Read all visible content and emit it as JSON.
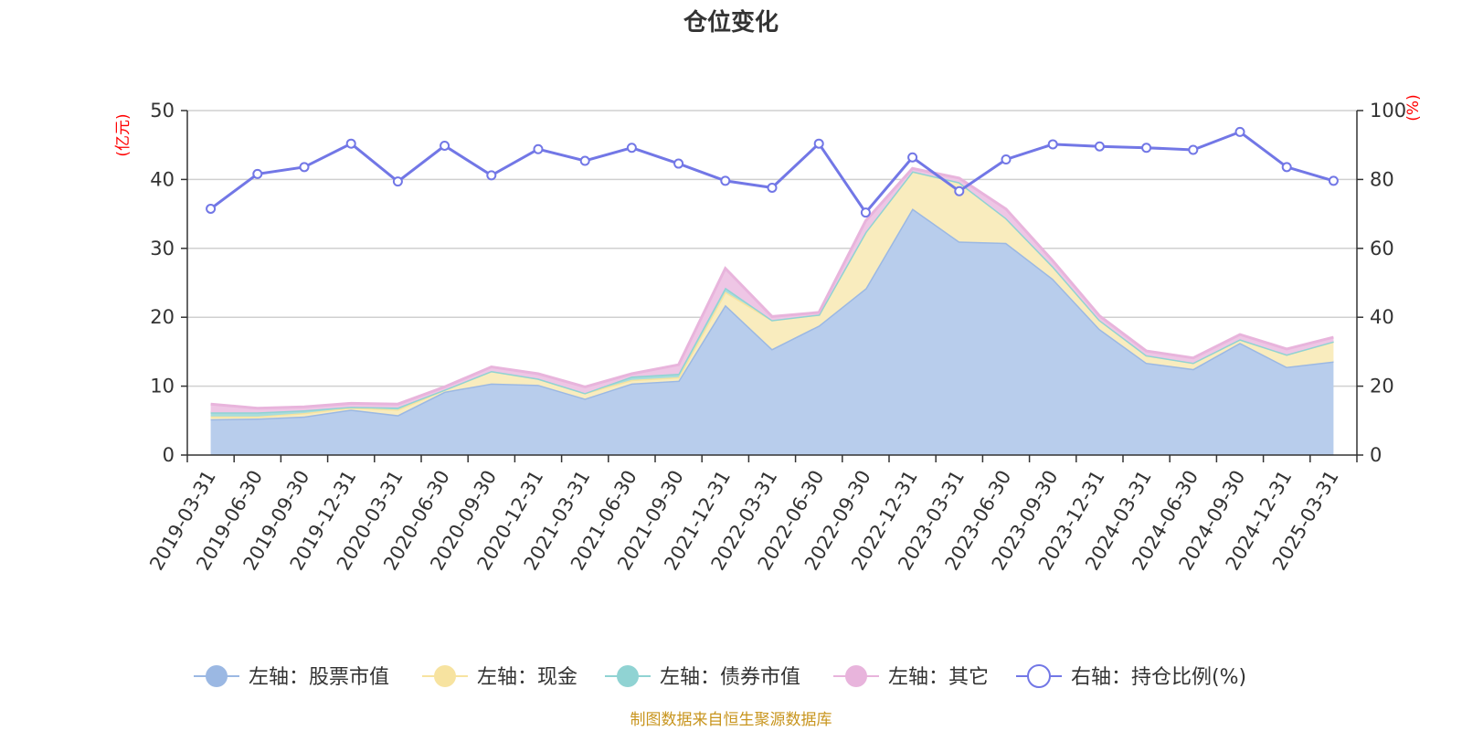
{
  "chart_data": {
    "type": "area",
    "title": "仓位变化",
    "x": [
      "2019-03-31",
      "2019-06-30",
      "2019-09-30",
      "2019-12-31",
      "2020-03-31",
      "2020-06-30",
      "2020-09-30",
      "2020-12-31",
      "2021-03-31",
      "2021-06-30",
      "2021-09-30",
      "2021-12-31",
      "2022-03-31",
      "2022-06-30",
      "2022-09-30",
      "2022-12-31",
      "2023-03-31",
      "2023-06-30",
      "2023-09-30",
      "2023-12-31",
      "2024-03-31",
      "2024-06-30",
      "2024-09-30",
      "2024-12-31",
      "2025-03-31"
    ],
    "left_axis": {
      "unit": "(亿元)",
      "ylim": [
        0,
        50
      ],
      "ticks": [
        0,
        10,
        20,
        30,
        40,
        50
      ]
    },
    "right_axis": {
      "unit": "(%)",
      "ylim": [
        0,
        100
      ],
      "ticks": [
        0,
        20,
        40,
        60,
        80,
        100
      ]
    },
    "stacked": true,
    "series": [
      {
        "name": "左轴：股票市值",
        "axis": "left",
        "color": "#9bb8e3",
        "fill": "#b8cdec",
        "values": [
          5.2,
          5.3,
          5.6,
          6.6,
          5.8,
          9.2,
          10.4,
          10.2,
          8.2,
          10.4,
          10.8,
          21.8,
          15.4,
          18.8,
          24.2,
          35.8,
          31.0,
          30.8,
          25.6,
          18.3,
          13.4,
          12.5,
          16.3,
          12.8,
          13.6
        ]
      },
      {
        "name": "左轴：现金",
        "axis": "left",
        "color": "#f7e3a0",
        "fill": "#f9ecbe",
        "values": [
          0.4,
          0.3,
          0.5,
          0.3,
          0.8,
          0.3,
          1.8,
          0.9,
          0.8,
          0.5,
          0.5,
          1.9,
          4.2,
          1.6,
          8.2,
          5.4,
          8.6,
          3.6,
          1.8,
          1.3,
          1.1,
          0.9,
          0.5,
          1.8,
          2.9
        ]
      },
      {
        "name": "左轴：债券市值",
        "axis": "left",
        "color": "#90d3d3",
        "fill": "#a8dcdc",
        "values": [
          0.6,
          0.6,
          0.4,
          0.1,
          0.3,
          0.0,
          0.0,
          0.0,
          0.0,
          0.5,
          0.5,
          0.6,
          0.0,
          0.0,
          0.0,
          0.0,
          0.0,
          0.0,
          0.0,
          0.0,
          0.0,
          0.0,
          0.0,
          0.0,
          0.0
        ]
      },
      {
        "name": "左轴：其它",
        "axis": "left",
        "color": "#e8b4dc",
        "fill": "#eec6e5",
        "values": [
          1.2,
          0.6,
          0.5,
          0.5,
          0.5,
          0.4,
          0.6,
          0.7,
          0.9,
          0.4,
          1.3,
          2.8,
          0.5,
          0.3,
          1.6,
          0.4,
          0.6,
          1.3,
          0.8,
          0.6,
          0.6,
          0.7,
          0.7,
          0.8,
          0.6
        ]
      },
      {
        "name": "右轴：持仓比例(%)",
        "axis": "right",
        "color": "#7277e6",
        "type": "line",
        "values": [
          71.5,
          81.6,
          83.6,
          90.4,
          79.4,
          89.8,
          81.2,
          88.8,
          85.4,
          89.2,
          84.6,
          79.6,
          77.6,
          90.4,
          70.4,
          86.4,
          76.6,
          85.8,
          90.2,
          89.6,
          89.2,
          88.6,
          93.8,
          83.6,
          79.6
        ]
      }
    ],
    "legend_position": "bottom",
    "grid": true
  },
  "footer": {
    "source": "制图数据来自恒生聚源数据库"
  }
}
